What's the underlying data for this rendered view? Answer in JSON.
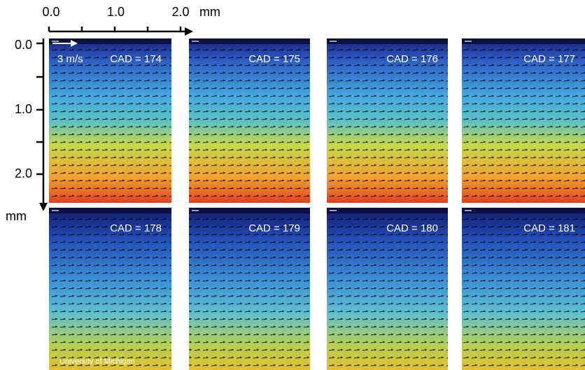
{
  "x_axis": {
    "ticks": [
      "0.0",
      "1.0",
      "2.0"
    ],
    "unit": "mm"
  },
  "y_axis": {
    "ticks": [
      "0.0",
      "1.0",
      "2.0"
    ],
    "unit": "mm"
  },
  "scale_label": "3 m/s",
  "panels": [
    {
      "label": "CAD = 174"
    },
    {
      "label": "CAD = 175"
    },
    {
      "label": "CAD = 176"
    },
    {
      "label": "CAD = 177"
    },
    {
      "label": "CAD = 178"
    },
    {
      "label": "CAD = 179"
    },
    {
      "label": "CAD = 180"
    },
    {
      "label": "CAD = 181"
    }
  ],
  "credit": "University of Michigan"
}
